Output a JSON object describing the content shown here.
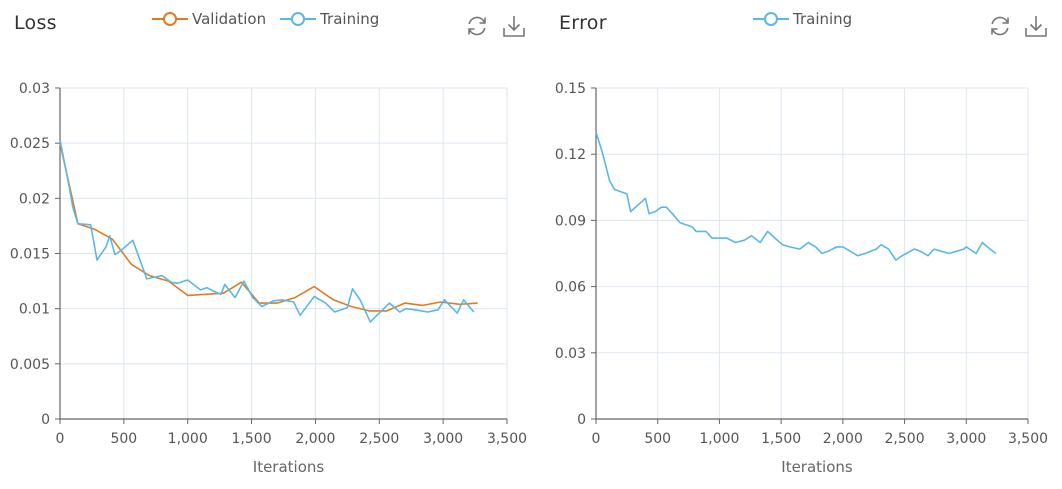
{
  "colors": {
    "validation": "#e07b23",
    "training": "#5bb8e6",
    "grid": "#dde6f0",
    "axis": "#666666",
    "text": "#555555"
  },
  "charts": [
    {
      "key": "loss",
      "title": "Loss",
      "legend": [
        {
          "name": "Validation",
          "color": "#e07b23"
        },
        {
          "name": "Training",
          "color": "#5bb8e6"
        }
      ],
      "toolbar": {
        "refresh_icon": "refresh-icon",
        "download_icon": "download-icon"
      }
    },
    {
      "key": "error",
      "title": "Error",
      "legend": [
        {
          "name": "Training",
          "color": "#5bb8e6"
        }
      ],
      "toolbar": {
        "refresh_icon": "refresh-icon",
        "download_icon": "download-icon"
      }
    }
  ],
  "chart_data": [
    {
      "type": "line",
      "title": "Loss",
      "xlabel": "Iterations",
      "ylabel": "",
      "xlim": [
        0,
        3500
      ],
      "ylim": [
        0,
        0.03
      ],
      "xticks": [
        0,
        500,
        1000,
        1500,
        2000,
        2500,
        3000,
        3500
      ],
      "xtick_labels": [
        "0",
        "500",
        "1,000",
        "1,500",
        "2,000",
        "2,500",
        "3,000",
        "3,500"
      ],
      "yticks": [
        0,
        0.005,
        0.01,
        0.015,
        0.02,
        0.025,
        0.03
      ],
      "ytick_labels": [
        "0",
        "0.005",
        "0.01",
        "0.015",
        "0.02",
        "0.025",
        "0.03"
      ],
      "grid": true,
      "legend_position": "top",
      "series": [
        {
          "name": "Validation",
          "color": "#e07b23",
          "points": [
            [
              0,
              0.025
            ],
            [
              140,
              0.0177
            ],
            [
              270,
              0.0172
            ],
            [
              410,
              0.0163
            ],
            [
              560,
              0.014
            ],
            [
              700,
              0.013
            ],
            [
              850,
              0.0125
            ],
            [
              1000,
              0.0112
            ],
            [
              1140,
              0.0113
            ],
            [
              1280,
              0.0114
            ],
            [
              1420,
              0.0124
            ],
            [
              1560,
              0.0105
            ],
            [
              1700,
              0.0105
            ],
            [
              1840,
              0.011
            ],
            [
              1990,
              0.012
            ],
            [
              2140,
              0.0108
            ],
            [
              2280,
              0.0102
            ],
            [
              2420,
              0.0098
            ],
            [
              2560,
              0.0098
            ],
            [
              2700,
              0.0105
            ],
            [
              2840,
              0.0103
            ],
            [
              2980,
              0.0106
            ],
            [
              3130,
              0.0104
            ],
            [
              3270,
              0.0105
            ]
          ]
        },
        {
          "name": "Training",
          "color": "#5bb8e6",
          "points": [
            [
              0,
              0.0253
            ],
            [
              70,
              0.0212
            ],
            [
              100,
              0.0192
            ],
            [
              140,
              0.0177
            ],
            [
              240,
              0.0176
            ],
            [
              290,
              0.0144
            ],
            [
              360,
              0.0156
            ],
            [
              390,
              0.0166
            ],
            [
              430,
              0.0149
            ],
            [
              480,
              0.0153
            ],
            [
              570,
              0.0162
            ],
            [
              680,
              0.0127
            ],
            [
              800,
              0.013
            ],
            [
              870,
              0.0124
            ],
            [
              920,
              0.0123
            ],
            [
              1000,
              0.0126
            ],
            [
              1100,
              0.0117
            ],
            [
              1150,
              0.0119
            ],
            [
              1200,
              0.0116
            ],
            [
              1260,
              0.0113
            ],
            [
              1290,
              0.0122
            ],
            [
              1370,
              0.011
            ],
            [
              1440,
              0.0125
            ],
            [
              1510,
              0.011
            ],
            [
              1580,
              0.0102
            ],
            [
              1670,
              0.0107
            ],
            [
              1740,
              0.0108
            ],
            [
              1830,
              0.0106
            ],
            [
              1880,
              0.0094
            ],
            [
              1990,
              0.0111
            ],
            [
              2080,
              0.0105
            ],
            [
              2150,
              0.0097
            ],
            [
              2250,
              0.0101
            ],
            [
              2290,
              0.0118
            ],
            [
              2350,
              0.0108
            ],
            [
              2430,
              0.0088
            ],
            [
              2490,
              0.0095
            ],
            [
              2580,
              0.0105
            ],
            [
              2660,
              0.0097
            ],
            [
              2710,
              0.01
            ],
            [
              2780,
              0.0099
            ],
            [
              2880,
              0.0097
            ],
            [
              2960,
              0.0099
            ],
            [
              3010,
              0.0108
            ],
            [
              3110,
              0.0096
            ],
            [
              3160,
              0.0108
            ],
            [
              3240,
              0.0097
            ]
          ]
        }
      ]
    },
    {
      "type": "line",
      "title": "Error",
      "xlabel": "Iterations",
      "ylabel": "",
      "xlim": [
        0,
        3500
      ],
      "ylim": [
        0,
        0.15
      ],
      "xticks": [
        0,
        500,
        1000,
        1500,
        2000,
        2500,
        3000,
        3500
      ],
      "xtick_labels": [
        "0",
        "500",
        "1,000",
        "1,500",
        "2,000",
        "2,500",
        "3,000",
        "3,500"
      ],
      "yticks": [
        0,
        0.03,
        0.06,
        0.09,
        0.12,
        0.15
      ],
      "ytick_labels": [
        "0",
        "0.03",
        "0.06",
        "0.09",
        "0.12",
        "0.15"
      ],
      "grid": true,
      "legend_position": "top",
      "series": [
        {
          "name": "Training",
          "color": "#5bb8e6",
          "points": [
            [
              0,
              0.13
            ],
            [
              50,
              0.121
            ],
            [
              110,
              0.108
            ],
            [
              150,
              0.104
            ],
            [
              250,
              0.102
            ],
            [
              280,
              0.094
            ],
            [
              340,
              0.097
            ],
            [
              400,
              0.1
            ],
            [
              430,
              0.093
            ],
            [
              480,
              0.094
            ],
            [
              530,
              0.096
            ],
            [
              570,
              0.096
            ],
            [
              620,
              0.093
            ],
            [
              680,
              0.089
            ],
            [
              780,
              0.087
            ],
            [
              810,
              0.085
            ],
            [
              890,
              0.085
            ],
            [
              940,
              0.082
            ],
            [
              1000,
              0.082
            ],
            [
              1060,
              0.082
            ],
            [
              1130,
              0.08
            ],
            [
              1200,
              0.081
            ],
            [
              1260,
              0.083
            ],
            [
              1330,
              0.08
            ],
            [
              1390,
              0.085
            ],
            [
              1450,
              0.082
            ],
            [
              1510,
              0.079
            ],
            [
              1570,
              0.078
            ],
            [
              1650,
              0.077
            ],
            [
              1720,
              0.08
            ],
            [
              1780,
              0.078
            ],
            [
              1830,
              0.075
            ],
            [
              1880,
              0.076
            ],
            [
              1950,
              0.078
            ],
            [
              2000,
              0.078
            ],
            [
              2060,
              0.076
            ],
            [
              2120,
              0.074
            ],
            [
              2180,
              0.075
            ],
            [
              2270,
              0.077
            ],
            [
              2310,
              0.079
            ],
            [
              2370,
              0.077
            ],
            [
              2430,
              0.072
            ],
            [
              2480,
              0.074
            ],
            [
              2580,
              0.077
            ],
            [
              2630,
              0.076
            ],
            [
              2690,
              0.074
            ],
            [
              2740,
              0.077
            ],
            [
              2800,
              0.076
            ],
            [
              2860,
              0.075
            ],
            [
              2920,
              0.076
            ],
            [
              2980,
              0.077
            ],
            [
              3000,
              0.078
            ],
            [
              3080,
              0.075
            ],
            [
              3130,
              0.08
            ],
            [
              3170,
              0.078
            ],
            [
              3240,
              0.075
            ]
          ]
        }
      ]
    }
  ]
}
